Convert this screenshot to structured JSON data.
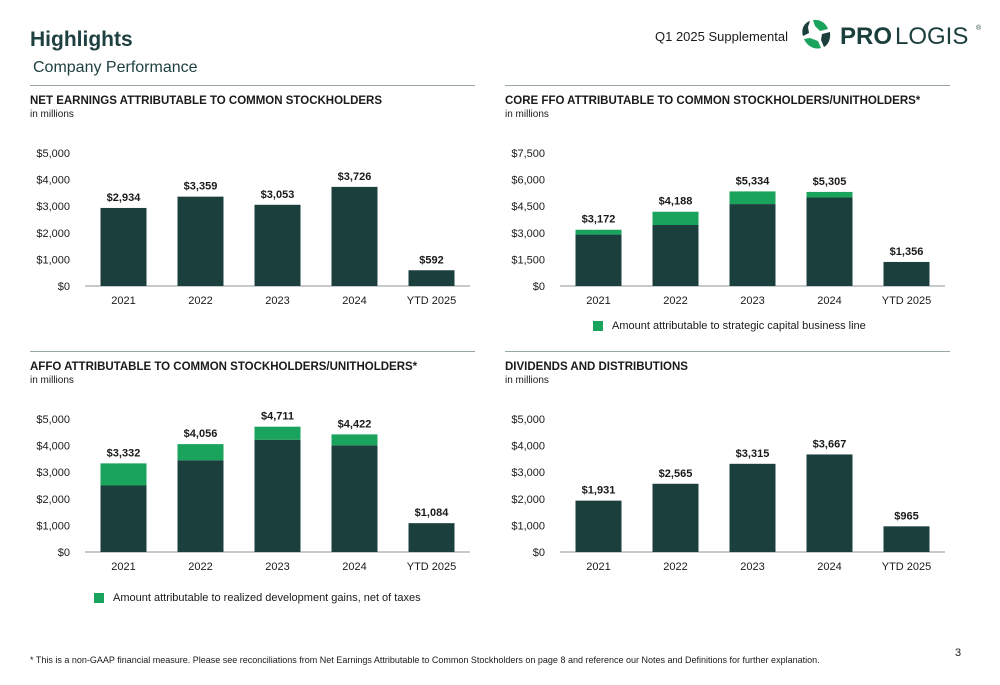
{
  "header": {
    "title": "Highlights",
    "subtitle": "Company Performance",
    "supplemental": "Q1 2025 Supplemental",
    "logo_text_bold": "PRO",
    "logo_text_light": "LOGIS",
    "logo_reg": "®"
  },
  "colors": {
    "dark": "#1b3f3c",
    "green": "#1aa35c",
    "axis": "#8c9696"
  },
  "chart_data": [
    {
      "type": "bar",
      "title": "NET EARNINGS ATTRIBUTABLE TO COMMON STOCKHOLDERS",
      "subtitle": "in millions",
      "categories": [
        "2021",
        "2022",
        "2023",
        "2024",
        "YTD 2025"
      ],
      "series": [
        {
          "values": [
            2934,
            3359,
            3053,
            3726,
            592
          ]
        }
      ],
      "data_labels": [
        "$2,934",
        "$3,359",
        "$3,053",
        "$3,726",
        "$592"
      ],
      "ylim": [
        0,
        5000
      ],
      "yticks": [
        0,
        1000,
        2000,
        3000,
        4000,
        5000
      ],
      "ytick_labels": [
        "$0",
        "$1,000",
        "$2,000",
        "$3,000",
        "$4,000",
        "$5,000"
      ],
      "grid": false
    },
    {
      "type": "bar",
      "stacked": true,
      "title": "CORE FFO ATTRIBUTABLE TO COMMON STOCKHOLDERS/UNITHOLDERS*",
      "subtitle": "in millions",
      "categories": [
        "2021",
        "2022",
        "2023",
        "2024",
        "YTD 2025"
      ],
      "series": [
        {
          "values": [
            2900,
            3440,
            4620,
            4990,
            1356
          ]
        },
        {
          "name": "Amount attributable to strategic capital business line",
          "values": [
            272,
            748,
            714,
            315,
            0
          ]
        }
      ],
      "data_labels": [
        "$3,172",
        "$4,188",
        "$5,334",
        "$5,305",
        "$1,356"
      ],
      "ylim": [
        0,
        7500
      ],
      "yticks": [
        0,
        1500,
        3000,
        4500,
        6000,
        7500
      ],
      "ytick_labels": [
        "$0",
        "$1,500",
        "$3,000",
        "$4,500",
        "$6,000",
        "$7,500"
      ],
      "legend": "bottom",
      "grid": false
    },
    {
      "type": "bar",
      "stacked": true,
      "title": "AFFO ATTRIBUTABLE TO COMMON STOCKHOLDERS/UNITHOLDERS*",
      "subtitle": "in millions",
      "categories": [
        "2021",
        "2022",
        "2023",
        "2024",
        "YTD 2025"
      ],
      "series": [
        {
          "values": [
            2500,
            3450,
            4220,
            4010,
            1084
          ]
        },
        {
          "name": "Amount attributable to realized development gains, net of taxes",
          "values": [
            832,
            606,
            491,
            412,
            0
          ]
        }
      ],
      "data_labels": [
        "$3,332",
        "$4,056",
        "$4,711",
        "$4,422",
        "$1,084"
      ],
      "ylim": [
        0,
        5000
      ],
      "yticks": [
        0,
        1000,
        2000,
        3000,
        4000,
        5000
      ],
      "ytick_labels": [
        "$0",
        "$1,000",
        "$2,000",
        "$3,000",
        "$4,000",
        "$5,000"
      ],
      "legend": "bottom",
      "grid": false
    },
    {
      "type": "bar",
      "title": "DIVIDENDS AND DISTRIBUTIONS",
      "subtitle": "in millions",
      "categories": [
        "2021",
        "2022",
        "2023",
        "2024",
        "YTD 2025"
      ],
      "series": [
        {
          "values": [
            1931,
            2565,
            3315,
            3667,
            965
          ]
        }
      ],
      "data_labels": [
        "$1,931",
        "$2,565",
        "$3,315",
        "$3,667",
        "$965"
      ],
      "ylim": [
        0,
        5000
      ],
      "yticks": [
        0,
        1000,
        2000,
        3000,
        4000,
        5000
      ],
      "ytick_labels": [
        "$0",
        "$1,000",
        "$2,000",
        "$3,000",
        "$4,000",
        "$5,000"
      ],
      "grid": false
    }
  ],
  "footnote": "* This is a non-GAAP financial measure. Please see reconciliations from Net Earnings Attributable to Common Stockholders on page 8 and reference our Notes and Definitions for further explanation.",
  "page_number": "3"
}
